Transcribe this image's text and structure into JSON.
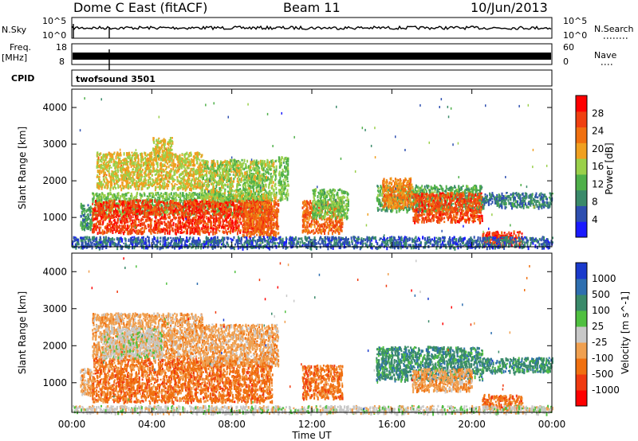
{
  "header": {
    "station": "Dome C East (fitACF)",
    "beam": "Beam 11",
    "date": "10/Jun/2013"
  },
  "top_panels": {
    "nsky_label": "N.Sky",
    "nsky_ticks": [
      "10^5",
      "10^0"
    ],
    "nsearch_label": "N.Search",
    "freq_label": "Freq.",
    "freq_unit": "[MHz]",
    "freq_ticks": [
      "18",
      "8"
    ],
    "nave_label": "Nave",
    "nave_ticks": [
      "60",
      "0"
    ],
    "cpid_label": "CPID",
    "cpid_value": "twofsound 3501"
  },
  "colors": {
    "power": [
      "#1a1aff",
      "#2e4fb0",
      "#3a8a6a",
      "#4fb04a",
      "#9ad04a",
      "#f0a020",
      "#f07010",
      "#f04010",
      "#ff0000"
    ],
    "velocity": [
      "#ff0000",
      "#f03a10",
      "#f07010",
      "#f0a050",
      "#c8c8c8",
      "#50c040",
      "#3a8a6a",
      "#2e6fb0",
      "#1a3acc"
    ]
  },
  "chart_data": [
    {
      "type": "heatmap",
      "name": "power",
      "ylabel": "Slant Range [km]",
      "ylim": [
        200,
        4500
      ],
      "yticks": [
        1000,
        2000,
        3000,
        4000
      ],
      "xlim": [
        0,
        24
      ],
      "colorbar": {
        "label": "Power [dB]",
        "ticks": [
          "4",
          "8",
          "12",
          "16",
          "20",
          "24",
          "28"
        ],
        "range": [
          0,
          32
        ]
      },
      "regions": [
        {
          "t0": 0.4,
          "t1": 1.0,
          "r0": 700,
          "r1": 1400,
          "v": 10
        },
        {
          "t0": 1.0,
          "t1": 10.0,
          "r0": 1100,
          "r1": 1700,
          "v": 14
        },
        {
          "t0": 1.0,
          "t1": 10.0,
          "r0": 600,
          "r1": 1500,
          "v": 27
        },
        {
          "t0": 1.2,
          "t1": 6.5,
          "r0": 1800,
          "r1": 2800,
          "v": 18
        },
        {
          "t0": 4.0,
          "t1": 5.0,
          "r0": 2600,
          "r1": 3200,
          "v": 18
        },
        {
          "t0": 6.5,
          "t1": 10.2,
          "r0": 1500,
          "r1": 2600,
          "v": 16
        },
        {
          "t0": 8.5,
          "t1": 10.3,
          "r0": 500,
          "r1": 1500,
          "v": 24
        },
        {
          "t0": 10.3,
          "t1": 10.8,
          "r0": 1500,
          "r1": 2700,
          "v": 14
        },
        {
          "t0": 11.5,
          "t1": 13.5,
          "r0": 600,
          "r1": 1500,
          "v": 24
        },
        {
          "t0": 12.0,
          "t1": 13.8,
          "r0": 1000,
          "r1": 1800,
          "v": 14
        },
        {
          "t0": 15.2,
          "t1": 20.5,
          "r0": 1200,
          "r1": 1900,
          "v": 12
        },
        {
          "t0": 17.0,
          "t1": 20.5,
          "r0": 900,
          "r1": 1700,
          "v": 26
        },
        {
          "t0": 15.5,
          "t1": 17.0,
          "r0": 1300,
          "r1": 2100,
          "v": 22
        },
        {
          "t0": 20.5,
          "t1": 24.0,
          "r0": 1300,
          "r1": 1700,
          "v": 8
        },
        {
          "t0": 20.5,
          "t1": 22.5,
          "r0": 250,
          "r1": 650,
          "v": 27
        },
        {
          "t0": 0.0,
          "t1": 24.0,
          "r0": 200,
          "r1": 500,
          "v": 6
        }
      ]
    },
    {
      "type": "heatmap",
      "name": "velocity",
      "ylabel": "Slant Range [km]",
      "xlabel": "Time UT",
      "ylim": [
        200,
        4500
      ],
      "yticks": [
        1000,
        2000,
        3000,
        4000
      ],
      "xlim": [
        0,
        24
      ],
      "xticks": [
        "00:00",
        "04:00",
        "08:00",
        "12:00",
        "16:00",
        "20:00",
        "00:00"
      ],
      "colorbar": {
        "label": "Velocity [m s^-1]",
        "ticks": [
          "1000",
          "500",
          "100",
          "25",
          "-25",
          "-100",
          "-500",
          "-1000"
        ]
      },
      "regions": [
        {
          "t0": 0.4,
          "t1": 1.0,
          "r0": 700,
          "r1": 1400,
          "c": 3
        },
        {
          "t0": 1.0,
          "t1": 10.0,
          "r0": 500,
          "r1": 1700,
          "c": 2
        },
        {
          "t0": 1.0,
          "t1": 6.5,
          "r0": 1700,
          "r1": 2900,
          "c": 3
        },
        {
          "t0": 1.5,
          "t1": 4.5,
          "r0": 1700,
          "r1": 2500,
          "c": 4
        },
        {
          "t0": 6.5,
          "t1": 10.3,
          "r0": 1500,
          "r1": 2600,
          "c": 3
        },
        {
          "t0": 11.5,
          "t1": 13.5,
          "r0": 600,
          "r1": 1500,
          "c": 2
        },
        {
          "t0": 15.2,
          "t1": 20.5,
          "r0": 1100,
          "r1": 2000,
          "c": 6
        },
        {
          "t0": 17.0,
          "t1": 20.0,
          "r0": 800,
          "r1": 1400,
          "c": 3
        },
        {
          "t0": 20.5,
          "t1": 24.0,
          "r0": 1300,
          "r1": 1700,
          "c": 6
        },
        {
          "t0": 20.5,
          "t1": 22.5,
          "r0": 300,
          "r1": 700,
          "c": 2
        },
        {
          "t0": 0.0,
          "t1": 24.0,
          "r0": 200,
          "r1": 400,
          "c": 4
        }
      ]
    }
  ]
}
